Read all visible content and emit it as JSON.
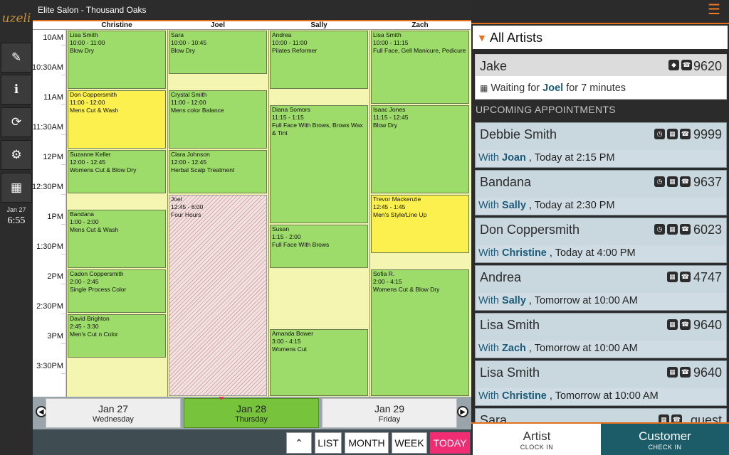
{
  "app": {
    "logo_text": "uzeli",
    "title": "Elite Salon - Thousand Oaks"
  },
  "sidebar": {
    "buttons": [
      {
        "name": "edit",
        "icon": "edit-icon",
        "glyph": "✎"
      },
      {
        "name": "info",
        "icon": "info-icon",
        "glyph": "ℹ"
      },
      {
        "name": "sync",
        "icon": "refresh-icon",
        "glyph": "⟳"
      },
      {
        "name": "settings",
        "icon": "gears-icon",
        "glyph": "⚙"
      },
      {
        "name": "calendar",
        "icon": "calendar-icon",
        "glyph": "▦"
      }
    ],
    "date": "Jan 27",
    "time": "6:55"
  },
  "calendar": {
    "columns": [
      "Christine",
      "Joel",
      "Sally",
      "Zach"
    ],
    "times": [
      "10AM",
      "10:30AM",
      "11AM",
      "11:30AM",
      "12PM",
      "12:30PM",
      "1PM",
      "1:30PM",
      "2PM",
      "2:30PM",
      "3PM",
      "3:30PM"
    ],
    "appointments": [
      {
        "col": 0,
        "start": "10:00",
        "end": "11:00",
        "client": "Lisa Smith",
        "time": "10:00 - 11:00",
        "service": "Blow Dry",
        "color": "green"
      },
      {
        "col": 0,
        "start": "11:00",
        "end": "12:00",
        "client": "Don Coppersmith",
        "time": "11:00 - 12:00",
        "service": "Mens Cut & Wash",
        "color": "yellow"
      },
      {
        "col": 0,
        "start": "12:00",
        "end": "12:45",
        "client": "Suzanne Keller",
        "time": "12:00 - 12:45",
        "service": "Womens Cut & Blow Dry",
        "color": "green"
      },
      {
        "col": 0,
        "start": "13:00",
        "end": "14:00",
        "client": "Bandana",
        "time": "1:00 - 2:00",
        "service": "Mens Cut & Wash",
        "color": "green"
      },
      {
        "col": 0,
        "start": "14:00",
        "end": "14:45",
        "client": "Cadon Coppersmith",
        "time": "2:00 - 2:45",
        "service": "Single Process Color",
        "color": "green"
      },
      {
        "col": 0,
        "start": "14:45",
        "end": "15:30",
        "client": "David Brighton",
        "time": "2:45 - 3:30",
        "service": "Men's Cut n Color",
        "color": "green"
      },
      {
        "col": 1,
        "start": "10:00",
        "end": "10:45",
        "client": "Sara",
        "time": "10:00 - 10:45",
        "service": "Blow Dry",
        "color": "green"
      },
      {
        "col": 1,
        "start": "11:00",
        "end": "12:00",
        "client": "Crystal Smith",
        "time": "11:00 - 12:00",
        "service": "Mens color Balance",
        "color": "green"
      },
      {
        "col": 1,
        "start": "12:00",
        "end": "12:45",
        "client": "Clara Johnson",
        "time": "12:00 - 12:45",
        "service": "Herbal Scalp Treatment",
        "color": "green"
      },
      {
        "col": 1,
        "start": "12:45",
        "end": "18:00",
        "client": "Joel",
        "time": "12:45 - 6:00",
        "service": "Four Hours",
        "color": "block"
      },
      {
        "col": 2,
        "start": "10:00",
        "end": "11:00",
        "client": "Andrea",
        "time": "10:00 - 11:00",
        "service": "Pilates Reformer",
        "color": "green"
      },
      {
        "col": 2,
        "start": "11:15",
        "end": "13:15",
        "client": "Diana Somors",
        "time": "11:15 - 1:15",
        "service": "Full Face With Brows, Brows Wax & Tint",
        "color": "green"
      },
      {
        "col": 2,
        "start": "13:15",
        "end": "14:00",
        "client": "Susan",
        "time": "1:15 - 2:00",
        "service": "Full Face With Brows",
        "color": "green"
      },
      {
        "col": 2,
        "start": "15:00",
        "end": "16:15",
        "client": "Amanda Bower",
        "time": "3:00 - 4:15",
        "service": "Womens Cut",
        "color": "green"
      },
      {
        "col": 3,
        "start": "10:00",
        "end": "11:15",
        "client": "Lisa Smith",
        "time": "10:00 - 11:15",
        "service": "Full Face, Gell Manicure, Pedicure",
        "color": "green"
      },
      {
        "col": 3,
        "start": "11:15",
        "end": "12:45",
        "client": "Isaac Jones",
        "time": "11:15 - 12:45",
        "service": "Blow Dry",
        "color": "green"
      },
      {
        "col": 3,
        "start": "12:45",
        "end": "13:45",
        "client": "Trevor Mackenzie",
        "time": "12:45 - 1:45",
        "service": "Men's Style/Line Up",
        "color": "yellow"
      },
      {
        "col": 3,
        "start": "14:00",
        "end": "16:15",
        "client": "Sofia R.",
        "time": "2:00 - 4:15",
        "service": "Womens Cut & Blow Dry",
        "color": "green"
      }
    ]
  },
  "datebar": {
    "tabs": [
      {
        "date": "Jan 27",
        "day": "Wednesday",
        "active": false
      },
      {
        "date": "Jan 28",
        "day": "Thursday",
        "active": true
      },
      {
        "date": "Jan 29",
        "day": "Friday",
        "active": false
      }
    ]
  },
  "nav": {
    "up": "⌃",
    "list": "LIST",
    "month": "MONTH",
    "week": "WEEK",
    "today": "TODAY"
  },
  "right": {
    "filter_label": "All Artists",
    "waiting": {
      "name": "Jake",
      "phone": "9620",
      "prefix": "Waiting for",
      "artist": "Joel",
      "suffix": "for 7 minutes"
    },
    "upcoming_label": "UPCOMING APPOINTMENTS",
    "appointments": [
      {
        "name": "Debbie Smith",
        "phone": "9999",
        "artist": "Joan",
        "when": ", Today at 2:15 PM",
        "icons": [
          "clock-icon",
          "calendar-icon",
          "phone-icon"
        ]
      },
      {
        "name": "Bandana",
        "phone": "9637",
        "artist": "Sally",
        "when": ", Today at 2:30 PM",
        "icons": [
          "clock-icon",
          "calendar-icon",
          "phone-icon"
        ]
      },
      {
        "name": "Don Coppersmith",
        "phone": "6023",
        "artist": "Christine",
        "when": ", Today at 4:00 PM",
        "icons": [
          "clock-icon",
          "calendar-icon",
          "phone-icon"
        ]
      },
      {
        "name": "Andrea",
        "phone": "4747",
        "artist": "Sally",
        "when": ", Tomorrow at 10:00 AM",
        "icons": [
          "calendar-icon",
          "phone-icon"
        ]
      },
      {
        "name": "Lisa Smith",
        "phone": "9640",
        "artist": "Zach",
        "when": ", Tomorrow at 10:00 AM",
        "icons": [
          "calendar-icon",
          "phone-icon"
        ]
      },
      {
        "name": "Lisa Smith",
        "phone": "9640",
        "artist": "Christine",
        "when": ", Tomorrow at 10:00 AM",
        "icons": [
          "calendar-icon",
          "phone-icon"
        ]
      },
      {
        "name": "Sara",
        "phone": "guest",
        "artist": "",
        "when": "",
        "icons": [
          "calendar-icon",
          "phone-icon"
        ]
      }
    ],
    "with_label": "With",
    "artist_btn": {
      "label": "Artist",
      "sub": "CLOCK IN"
    },
    "customer_btn": {
      "label": "Customer",
      "sub": "CHECK IN"
    }
  },
  "colors": {
    "accent": "#e66f1c",
    "today": "#f02d73",
    "active_tab": "#77c33c",
    "appt_green": "#9ddb6a",
    "appt_yellow": "#fbf04e",
    "customer_btn": "#1c5b68"
  }
}
